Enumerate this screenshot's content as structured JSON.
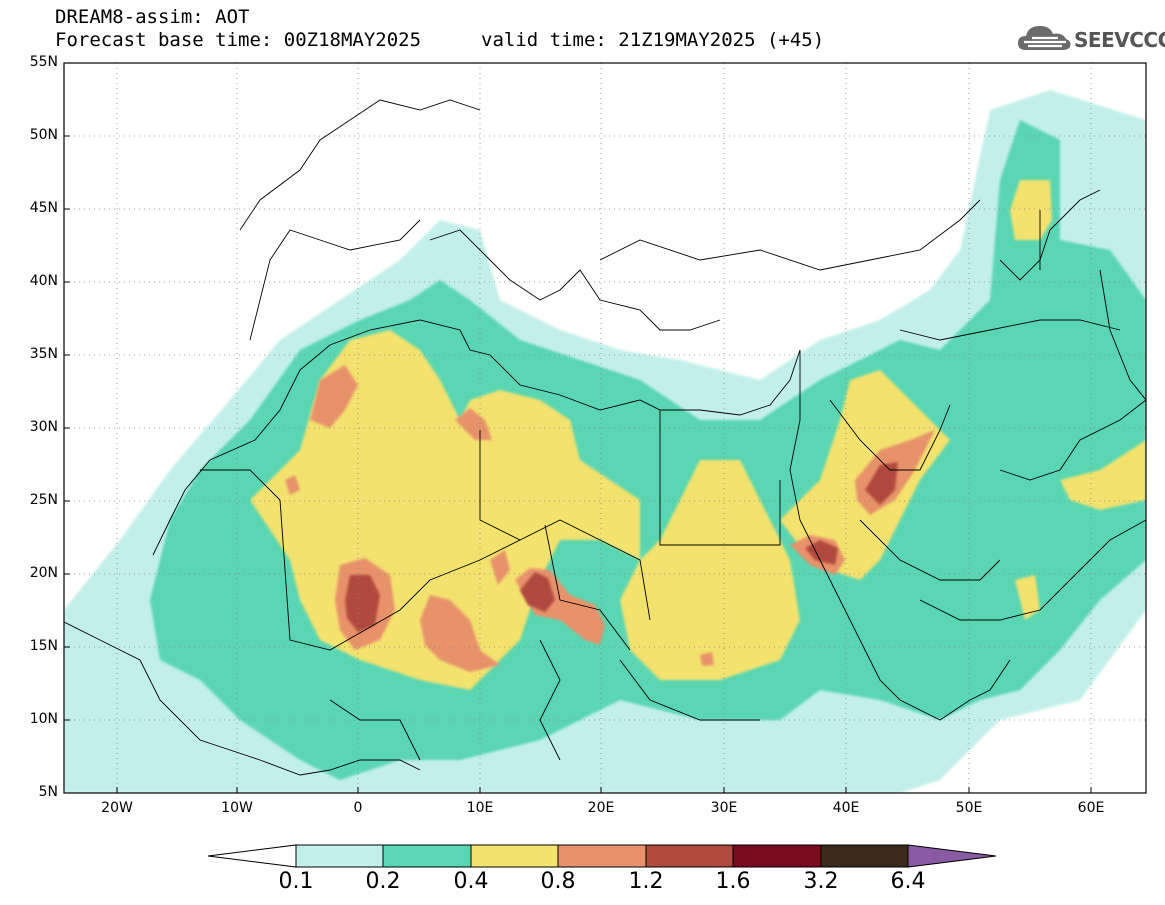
{
  "header": {
    "title": "DREAM8-assim: AOT",
    "base_time": "Forecast base time: 00Z18MAY2025",
    "valid_time": "valid time: 21Z19MAY2025 (+45)"
  },
  "logo": {
    "text": "SEEVCCC",
    "icon": "cloud-icon"
  },
  "axes": {
    "y_labels": [
      "55N",
      "50N",
      "45N",
      "40N",
      "35N",
      "30N",
      "25N",
      "20N",
      "15N",
      "10N",
      "5N"
    ],
    "x_labels": [
      "20W",
      "10W",
      "0",
      "10E",
      "20E",
      "30E",
      "40E",
      "50E",
      "60E"
    ],
    "lat_range": [
      5,
      55
    ],
    "lon_range": [
      -25,
      65
    ]
  },
  "colorbar": {
    "labels": [
      "0.1",
      "0.2",
      "0.4",
      "0.8",
      "1.2",
      "1.6",
      "3.2",
      "6.4"
    ],
    "colors": [
      "#ffffff",
      "#c2f0e8",
      "#5ad6b2",
      "#f3e26e",
      "#e8926a",
      "#b04a3c",
      "#7a0a20",
      "#3b2a1a",
      "#8a5aa5"
    ]
  }
}
